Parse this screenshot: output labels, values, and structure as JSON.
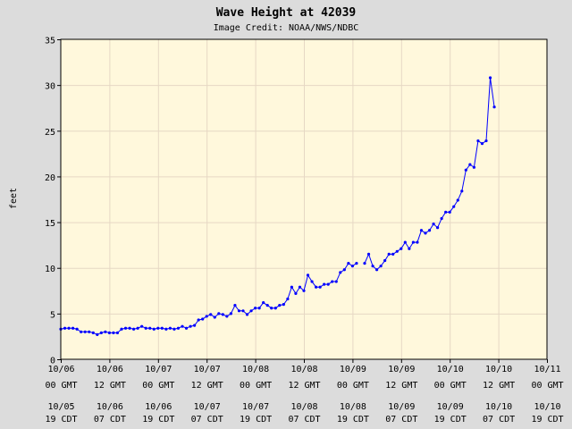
{
  "chart_data": {
    "type": "line",
    "title": "Wave Height at 42039",
    "subtitle": "Image Credit: NOAA/NWS/NDBC",
    "ylabel": "feet",
    "ylim": [
      0,
      35
    ],
    "yticks": [
      0,
      5,
      10,
      15,
      20,
      25,
      30,
      35
    ],
    "xlim_hours": [
      0,
      120
    ],
    "grid": true,
    "colors": {
      "background": "#dcdcdc",
      "plot": "#fff8dc",
      "grid": "#e6d8c4",
      "line": "#0000ff"
    },
    "x_ticks": [
      {
        "gmt": "10/06\n00 GMT",
        "cdt": "10/05\n19 CDT"
      },
      {
        "gmt": "10/06\n12 GMT",
        "cdt": "10/06\n07 CDT"
      },
      {
        "gmt": "10/07\n00 GMT",
        "cdt": "10/06\n19 CDT"
      },
      {
        "gmt": "10/07\n12 GMT",
        "cdt": "10/07\n07 CDT"
      },
      {
        "gmt": "10/08\n00 GMT",
        "cdt": "10/07\n19 CDT"
      },
      {
        "gmt": "10/08\n12 GMT",
        "cdt": "10/08\n07 CDT"
      },
      {
        "gmt": "10/09\n00 GMT",
        "cdt": "10/08\n19 CDT"
      },
      {
        "gmt": "10/09\n12 GMT",
        "cdt": "10/09\n07 CDT"
      },
      {
        "gmt": "10/10\n00 GMT",
        "cdt": "10/09\n19 CDT"
      },
      {
        "gmt": "10/10\n12 GMT",
        "cdt": "10/10\n07 CDT"
      },
      {
        "gmt": "10/11\n00 GMT",
        "cdt": "10/10\n19 CDT"
      }
    ],
    "series": [
      {
        "segments": [
          [
            [
              0,
              3.3
            ],
            [
              1,
              3.4
            ],
            [
              2,
              3.4
            ],
            [
              3,
              3.4
            ],
            [
              4,
              3.3
            ],
            [
              5,
              3.0
            ],
            [
              6,
              3.0
            ],
            [
              7,
              3.0
            ],
            [
              8,
              2.9
            ],
            [
              9,
              2.7
            ],
            [
              10,
              2.9
            ],
            [
              11,
              3.0
            ],
            [
              12,
              2.9
            ],
            [
              13,
              2.9
            ],
            [
              14,
              2.9
            ],
            [
              15,
              3.3
            ],
            [
              16,
              3.4
            ],
            [
              17,
              3.4
            ],
            [
              18,
              3.3
            ],
            [
              19,
              3.4
            ],
            [
              20,
              3.6
            ],
            [
              21,
              3.4
            ],
            [
              22,
              3.4
            ],
            [
              23,
              3.3
            ],
            [
              24,
              3.4
            ],
            [
              25,
              3.4
            ],
            [
              26,
              3.3
            ],
            [
              27,
              3.4
            ],
            [
              28,
              3.3
            ],
            [
              29,
              3.4
            ],
            [
              30,
              3.6
            ],
            [
              31,
              3.4
            ],
            [
              32,
              3.6
            ],
            [
              33,
              3.7
            ],
            [
              34,
              4.3
            ],
            [
              35,
              4.4
            ],
            [
              36,
              4.7
            ],
            [
              37,
              4.9
            ],
            [
              38,
              4.6
            ],
            [
              39,
              5.0
            ],
            [
              40,
              4.9
            ],
            [
              41,
              4.7
            ],
            [
              42,
              5.0
            ],
            [
              43,
              5.9
            ],
            [
              44,
              5.3
            ],
            [
              45,
              5.3
            ],
            [
              46,
              4.9
            ],
            [
              47,
              5.3
            ],
            [
              48,
              5.6
            ],
            [
              49,
              5.6
            ],
            [
              50,
              6.2
            ],
            [
              51,
              5.9
            ],
            [
              52,
              5.6
            ],
            [
              53,
              5.6
            ],
            [
              54,
              5.9
            ],
            [
              55,
              6.0
            ],
            [
              56,
              6.6
            ],
            [
              57,
              7.9
            ],
            [
              58,
              7.2
            ],
            [
              59,
              7.9
            ],
            [
              60,
              7.5
            ],
            [
              61,
              9.2
            ],
            [
              62,
              8.5
            ],
            [
              63,
              7.9
            ],
            [
              64,
              7.9
            ],
            [
              65,
              8.2
            ],
            [
              66,
              8.2
            ],
            [
              67,
              8.5
            ],
            [
              68,
              8.5
            ],
            [
              69,
              9.5
            ],
            [
              70,
              9.8
            ],
            [
              71,
              10.5
            ],
            [
              72,
              10.2
            ],
            [
              73,
              10.5
            ]
          ],
          [
            [
              75,
              10.5
            ],
            [
              76,
              11.5
            ],
            [
              77,
              10.2
            ],
            [
              78,
              9.8
            ],
            [
              79,
              10.2
            ],
            [
              80,
              10.8
            ],
            [
              81,
              11.5
            ],
            [
              82,
              11.5
            ],
            [
              83,
              11.8
            ],
            [
              84,
              12.1
            ],
            [
              85,
              12.8
            ],
            [
              86,
              12.1
            ],
            [
              87,
              12.8
            ],
            [
              88,
              12.8
            ],
            [
              89,
              14.1
            ],
            [
              90,
              13.8
            ],
            [
              91,
              14.1
            ],
            [
              92,
              14.8
            ],
            [
              93,
              14.4
            ],
            [
              94,
              15.4
            ],
            [
              95,
              16.1
            ],
            [
              96,
              16.1
            ],
            [
              97,
              16.7
            ],
            [
              98,
              17.4
            ],
            [
              99,
              18.4
            ],
            [
              100,
              20.7
            ],
            [
              101,
              21.3
            ],
            [
              102,
              21.0
            ],
            [
              103,
              23.9
            ],
            [
              104,
              23.6
            ],
            [
              105,
              23.9
            ],
            [
              106,
              30.8
            ],
            [
              107,
              27.6
            ]
          ]
        ]
      }
    ]
  }
}
